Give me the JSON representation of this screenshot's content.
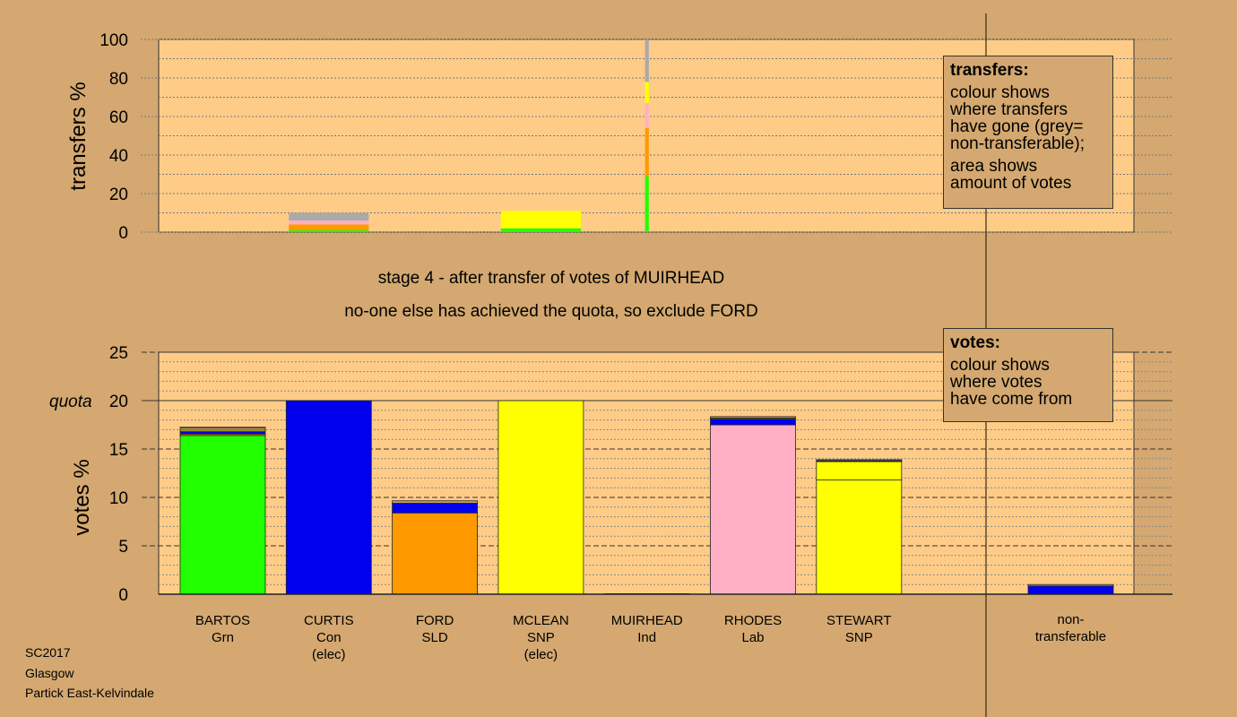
{
  "colors": {
    "background": "#d4a870",
    "plot_background": "#ffcc88",
    "Grn": "#22ff00",
    "Con": "#0000ee",
    "SLD": "#ff9900",
    "SNP": "#ffff00",
    "Lab": "#ffb0c4",
    "Ind": "#c8a070",
    "nontransferable": "#aaaaaa"
  },
  "stage": {
    "line1": "stage 4 - after transfer of votes of MUIRHEAD",
    "line2": "no-one else has achieved the quota, so exclude FORD"
  },
  "transfers_legend": {
    "title": "transfers:",
    "lines_a": [
      "colour shows",
      "where transfers",
      "have gone (grey=",
      "non-transferable);"
    ],
    "lines_b": [
      "area shows",
      "amount of votes"
    ]
  },
  "votes_legend": {
    "title": "votes:",
    "lines": [
      "colour shows",
      "where votes",
      "have come from"
    ]
  },
  "footer": {
    "election": "SC2017",
    "council": "Glasgow",
    "ward": "Partick East-Kelvindale"
  },
  "chart_data": [
    {
      "type": "bar",
      "title": "",
      "ylabel": "transfers %",
      "ylim": [
        0,
        100
      ],
      "yticks": [
        0,
        20,
        40,
        60,
        80,
        100
      ],
      "grid": true,
      "description_note": "stacked transfer bars; width proportional to amount of votes",
      "transfers": [
        {
          "from": "CURTIS",
          "width_fraction": 0.85,
          "segments": [
            {
              "party": "Grn",
              "value": 1
            },
            {
              "party": "SLD",
              "value": 3
            },
            {
              "party": "Lab",
              "value": 2
            },
            {
              "party": "nontransferable",
              "value": 4
            }
          ]
        },
        {
          "from": "MCLEAN",
          "width_fraction": 0.85,
          "segments": [
            {
              "party": "Grn",
              "value": 2
            },
            {
              "party": "SNP",
              "value": 9
            }
          ]
        },
        {
          "from": "MUIRHEAD",
          "width_fraction": 0.04,
          "segments": [
            {
              "party": "Grn",
              "value": 29
            },
            {
              "party": "SLD",
              "value": 25
            },
            {
              "party": "Lab",
              "value": 13
            },
            {
              "party": "SNP",
              "value": 11
            },
            {
              "party": "nontransferable",
              "value": 22
            }
          ]
        }
      ]
    },
    {
      "type": "bar",
      "title": "",
      "ylabel": "votes %",
      "ylim": [
        0,
        25
      ],
      "yticks": [
        0,
        5,
        10,
        15,
        20,
        25
      ],
      "quota": 20,
      "quota_label": "quota",
      "grid": true,
      "candidates": [
        {
          "name": "BARTOS",
          "party": "Grn",
          "note": "",
          "segments": [
            {
              "party": "Grn",
              "value": 16.4
            },
            {
              "party": "SLD",
              "value": 0.15
            },
            {
              "party": "Con",
              "value": 0.25
            },
            {
              "party": "SNP",
              "value": 0.15
            },
            {
              "party": "Ind",
              "value": 0.25
            },
            {
              "party": "Lab",
              "value": 0.05
            }
          ]
        },
        {
          "name": "CURTIS",
          "party": "Con",
          "note": "(elec)",
          "segments": [
            {
              "party": "Con",
              "value": 20.0
            }
          ]
        },
        {
          "name": "FORD",
          "party": "SLD",
          "note": "",
          "segments": [
            {
              "party": "SLD",
              "value": 8.4
            },
            {
              "party": "Con",
              "value": 1.0
            },
            {
              "party": "Ind",
              "value": 0.25
            }
          ]
        },
        {
          "name": "MCLEAN",
          "party": "SNP",
          "note": "(elec)",
          "segments": [
            {
              "party": "SNP",
              "value": 20.0
            }
          ]
        },
        {
          "name": "MUIRHEAD",
          "party": "Ind",
          "note": "",
          "segments": [
            {
              "party": "Ind",
              "value": 0.05
            }
          ]
        },
        {
          "name": "RHODES",
          "party": "Lab",
          "note": "",
          "segments": [
            {
              "party": "Lab",
              "value": 17.5
            },
            {
              "party": "Con",
              "value": 0.6
            },
            {
              "party": "SNP",
              "value": 0.1
            },
            {
              "party": "Ind",
              "value": 0.15
            }
          ]
        },
        {
          "name": "STEWART",
          "party": "SNP",
          "note": "",
          "segments": [
            {
              "party": "SNP",
              "value": 11.8
            },
            {
              "party": "SNP",
              "value": 1.9
            },
            {
              "party": "Con",
              "value": 0.1
            },
            {
              "party": "Ind",
              "value": 0.1
            }
          ]
        }
      ],
      "nontransferable": {
        "label_line1": "non-",
        "label_line2": "transferable",
        "segments": [
          {
            "party": "Con",
            "value": 0.85
          },
          {
            "party": "Ind",
            "value": 0.15
          }
        ]
      }
    }
  ]
}
